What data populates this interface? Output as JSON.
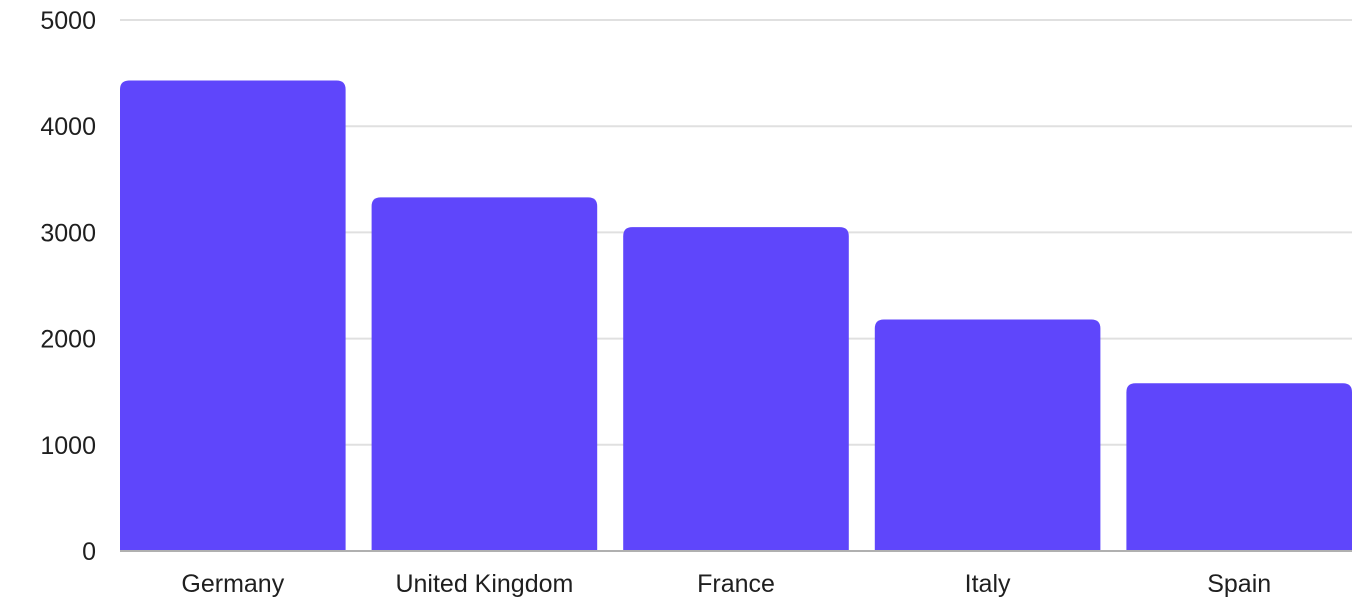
{
  "chart_data": {
    "type": "bar",
    "categories": [
      "Germany",
      "United Kingdom",
      "France",
      "Italy",
      "Spain"
    ],
    "values": [
      4430,
      3330,
      3050,
      2180,
      1580
    ],
    "title": "",
    "xlabel": "",
    "ylabel": "",
    "ylim": [
      0,
      5000
    ],
    "yticks": [
      "0",
      "1000",
      "2000",
      "3000",
      "4000",
      "5000"
    ],
    "grid": true,
    "legend": "none",
    "bar_color": "#5f46fb",
    "grid_color": "#e0e0e0",
    "axis_color": "#b0b0b0"
  }
}
